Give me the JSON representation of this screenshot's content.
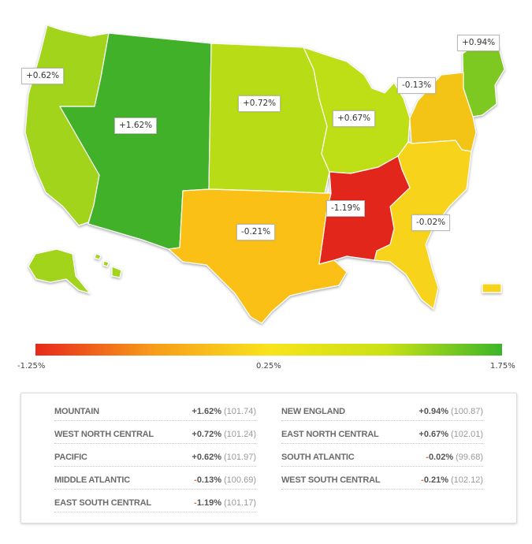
{
  "map": {
    "labels": [
      {
        "region": "pacific",
        "text": "+0.62%"
      },
      {
        "region": "mountain",
        "text": "+1.62%"
      },
      {
        "region": "west_north_central",
        "text": "+0.72%"
      },
      {
        "region": "east_north_central",
        "text": "+0.67%"
      },
      {
        "region": "middle_atlantic",
        "text": "-0.13%"
      },
      {
        "region": "new_england",
        "text": "+0.94%"
      },
      {
        "region": "east_south_central",
        "text": "-1.19%"
      },
      {
        "region": "south_atlantic",
        "text": "-0.02%"
      },
      {
        "region": "west_south_central",
        "text": "-0.21%"
      }
    ],
    "colors": {
      "mountain": "#43b12c",
      "new_england": "#7ec820",
      "west_north_central": "#b8dd14",
      "pacific": "#a2d41b",
      "east_north_central": "#bedf12",
      "middle_atlantic": "#f3c417",
      "south_atlantic": "#f7d31a",
      "west_south_central": "#fbc013",
      "east_south_central": "#e3261d"
    }
  },
  "legend": {
    "min": "-1.25%",
    "mid": "0.25%",
    "max": "1.75%",
    "gradient": [
      "#e8281c",
      "#f79b1a",
      "#f9e31c",
      "#c9e214",
      "#3cb52a"
    ]
  },
  "table": {
    "rows": [
      [
        {
          "name": "MOUNTAIN",
          "pct": "+1.62%",
          "index": "(101.74)",
          "negative": false
        },
        {
          "name": "NEW ENGLAND",
          "pct": "+0.94%",
          "index": "(100.87)",
          "negative": false
        }
      ],
      [
        {
          "name": "WEST NORTH CENTRAL",
          "pct": "+0.72%",
          "index": "(101.24)",
          "negative": false
        },
        {
          "name": "EAST NORTH CENTRAL",
          "pct": "+0.67%",
          "index": "(102.01)",
          "negative": false
        }
      ],
      [
        {
          "name": "PACIFIC",
          "pct": "+0.62%",
          "index": "(101.97)",
          "negative": false
        },
        {
          "name": "SOUTH ATLANTIC",
          "pct": "-0.02%",
          "index": "(99.68)",
          "negative": true
        }
      ],
      [
        {
          "name": "MIDDLE ATLANTIC",
          "pct": "-0.13%",
          "index": "(100.69)",
          "negative": true
        },
        {
          "name": "WEST SOUTH CENTRAL",
          "pct": "-0.21%",
          "index": "(102.12)",
          "negative": true
        }
      ],
      [
        {
          "name": "EAST SOUTH CENTRAL",
          "pct": "-1.19%",
          "index": "(101.17)",
          "negative": true
        }
      ]
    ]
  }
}
